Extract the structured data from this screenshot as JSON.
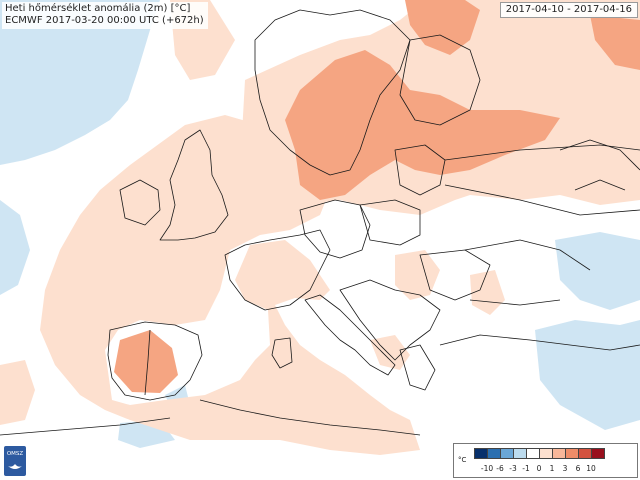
{
  "title": {
    "line1": "Heti hőmérséklet anomália (2m) [°C]",
    "line2": "ECMWF 2017-03-20 00:00 UTC (+672h)"
  },
  "date_range": "2017-04-10 - 2017-04-16",
  "logo_text": "OMSZ",
  "legend": {
    "unit": "°C",
    "classes": [
      {
        "color": "#08306b"
      },
      {
        "color": "#2b6fb0"
      },
      {
        "color": "#6aa6d6"
      },
      {
        "color": "#bcdbee"
      },
      {
        "color": "#ffffff"
      },
      {
        "color": "#fde0cf"
      },
      {
        "color": "#f8b79a"
      },
      {
        "color": "#ee8c68"
      },
      {
        "color": "#d3523f"
      },
      {
        "color": "#99101d"
      }
    ],
    "boundaries": [
      "-10",
      "-6",
      "-3",
      "-1",
      "0",
      "1",
      "3",
      "6",
      "10"
    ]
  },
  "map_colors": {
    "sea": "#ffffff",
    "warm_light": "#fde0cf",
    "warm_mid": "#f5a582",
    "cool_light": "#cfe5f3",
    "border": "#1a1a1a"
  }
}
